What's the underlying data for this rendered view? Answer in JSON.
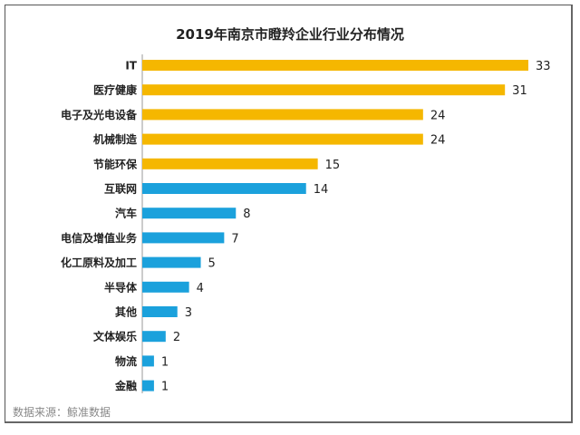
{
  "chart_data": {
    "type": "bar",
    "orientation": "horizontal",
    "title": "2019年南京市瞪羚企业行业分布情况",
    "categories": [
      "IT",
      "医疗健康",
      "电子及光电设备",
      "机械制造",
      "节能环保",
      "互联网",
      "汽车",
      "电信及增值业务",
      "化工原料及加工",
      "半导体",
      "其他",
      "文体娱乐",
      "物流",
      "金融"
    ],
    "values": [
      33,
      31,
      24,
      24,
      15,
      14,
      8,
      7,
      5,
      4,
      3,
      2,
      1,
      1
    ],
    "colors": [
      "#f5b700",
      "#f5b700",
      "#f5b700",
      "#f5b700",
      "#f5b700",
      "#1ba1dc",
      "#1ba1dc",
      "#1ba1dc",
      "#1ba1dc",
      "#1ba1dc",
      "#1ba1dc",
      "#1ba1dc",
      "#1ba1dc",
      "#1ba1dc"
    ],
    "data_labels": true,
    "grid": false,
    "xlim": [
      0,
      33
    ]
  },
  "source": "数据来源：鲸准数据"
}
